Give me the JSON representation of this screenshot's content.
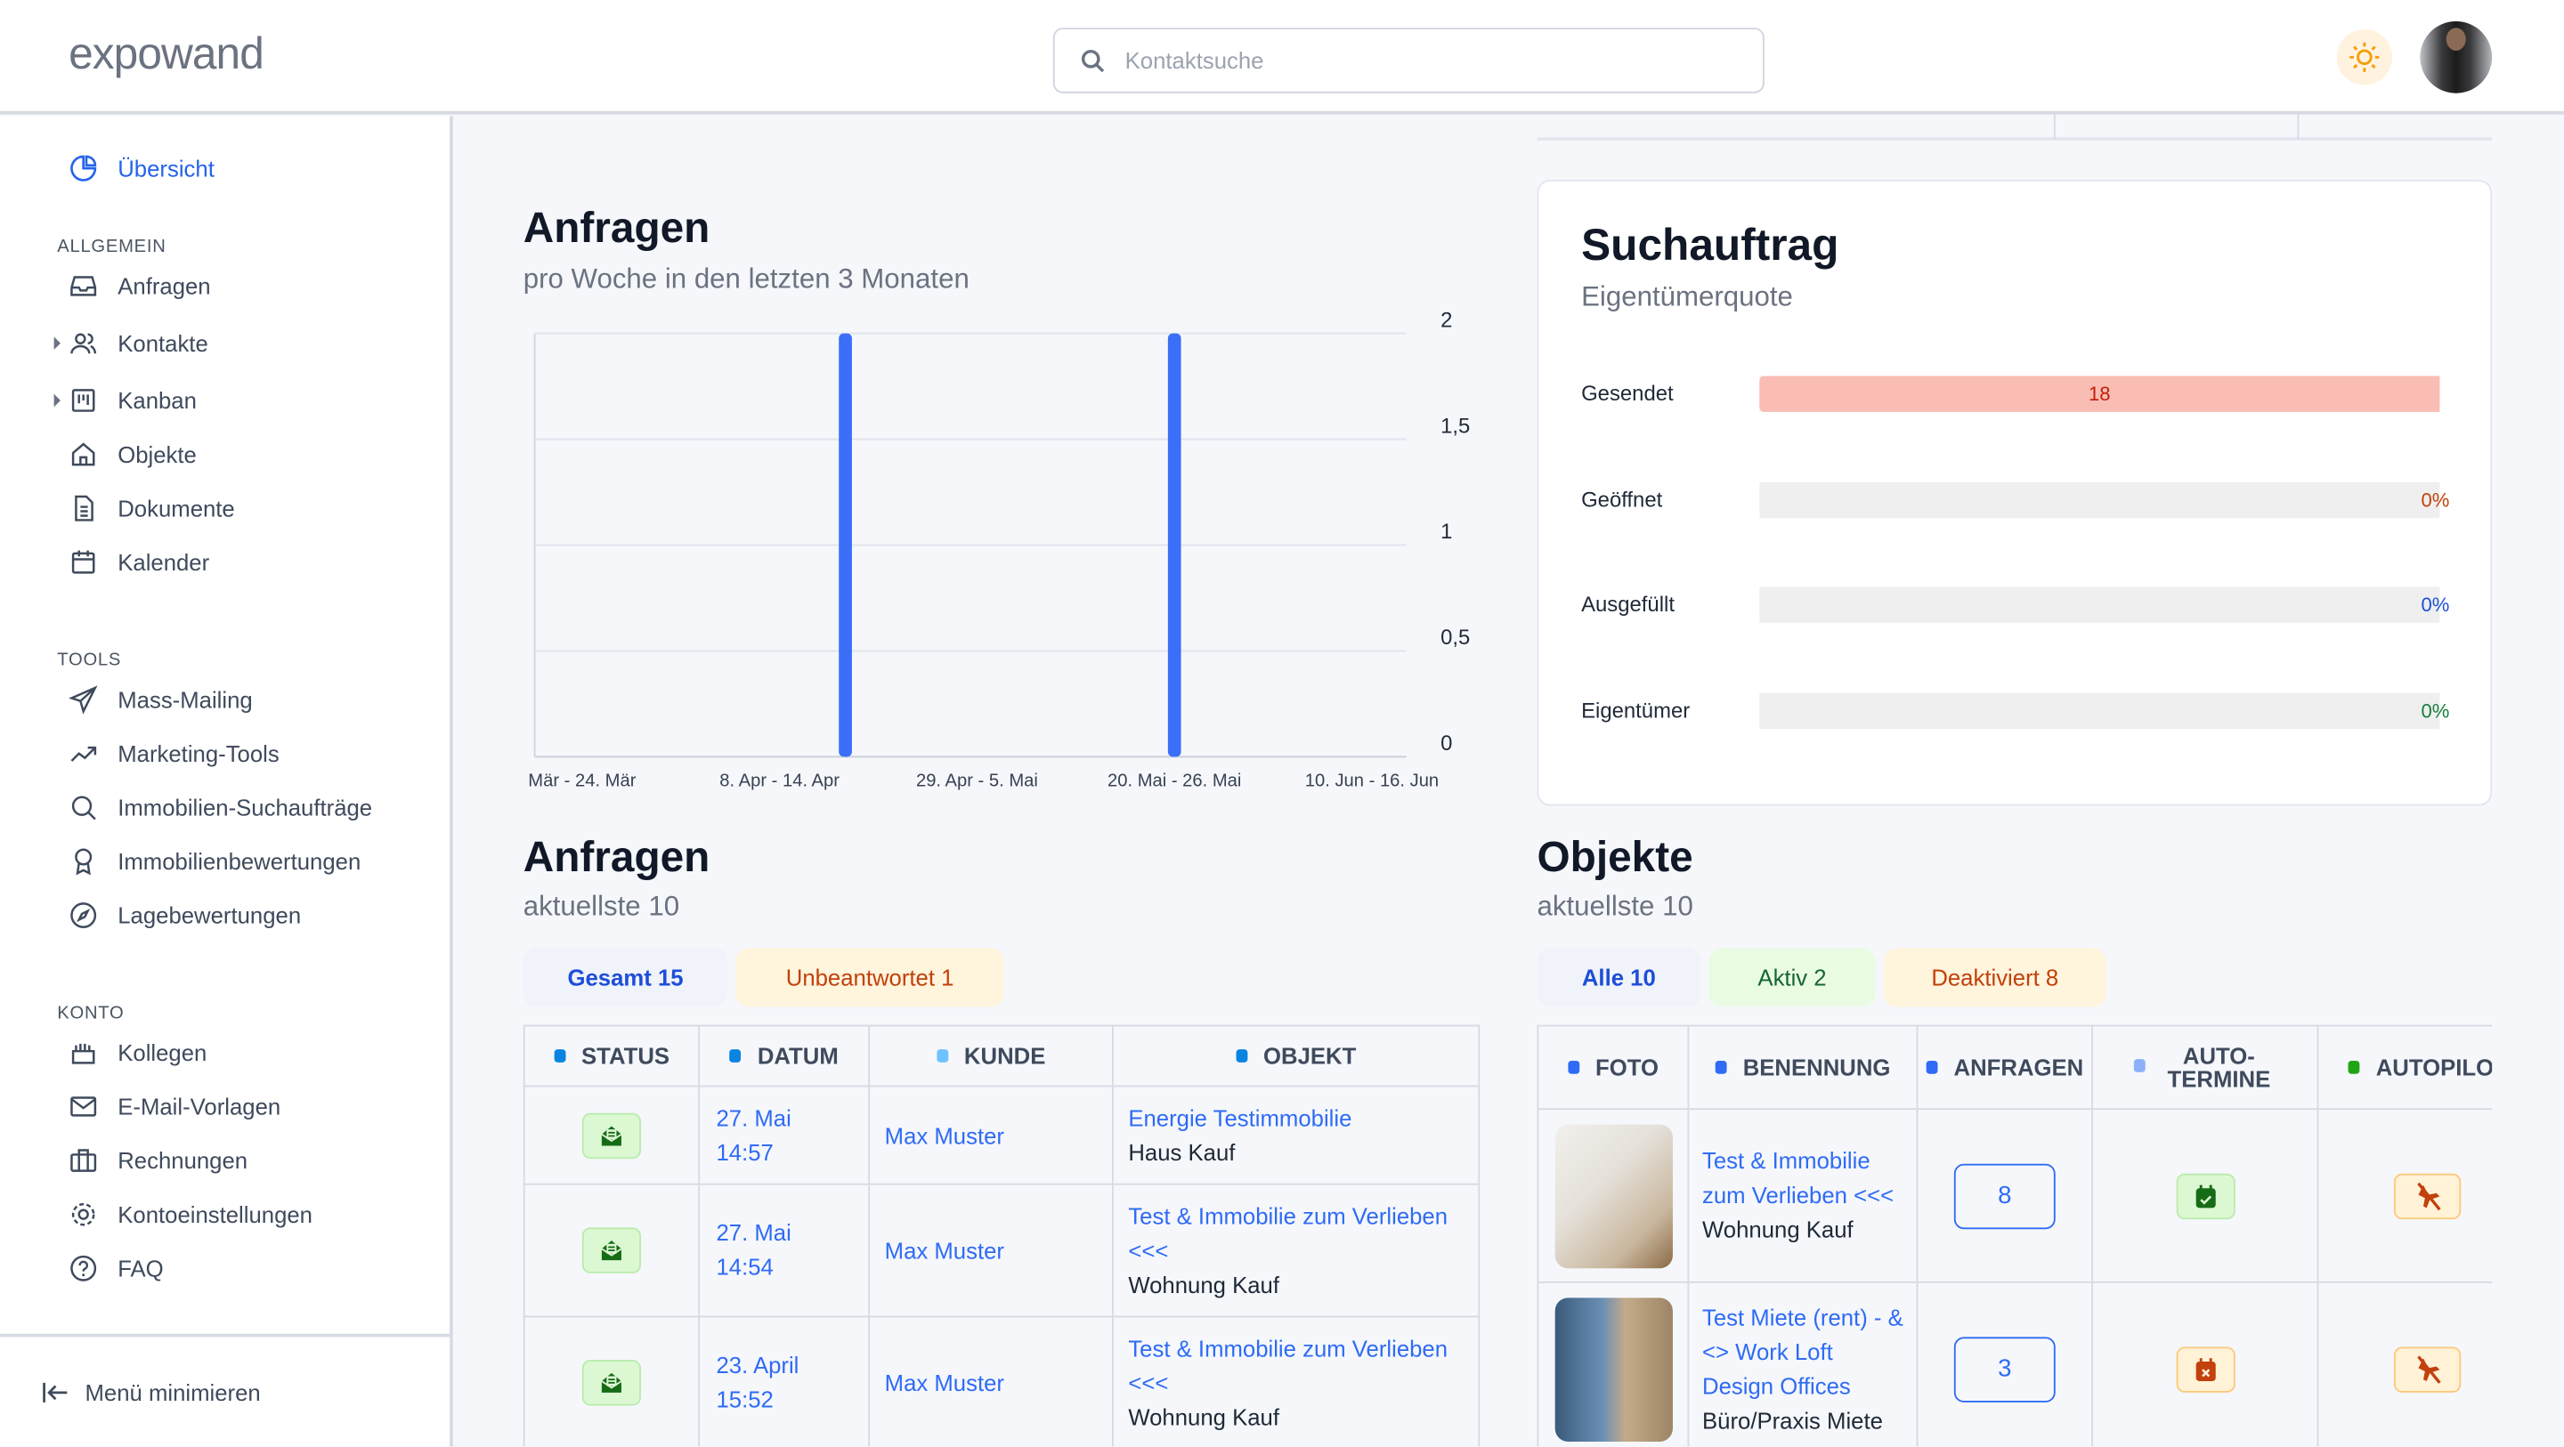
{
  "header": {
    "logo": "expowand",
    "search_placeholder": "Kontaktsuche",
    "theme_icon": "sun-icon"
  },
  "sidebar": {
    "overview": "Übersicht",
    "sections": [
      {
        "label": "ALLGEMEIN",
        "items": [
          "Anfragen",
          "Kontakte",
          "Kanban",
          "Objekte",
          "Dokumente",
          "Kalender"
        ]
      },
      {
        "label": "TOOLS",
        "items": [
          "Mass-Mailing",
          "Marketing-Tools",
          "Immobilien-Suchaufträge",
          "Immobilienbewertungen",
          "Lagebewertungen"
        ]
      },
      {
        "label": "KONTO",
        "items": [
          "Kollegen",
          "E-Mail-Vorlagen",
          "Rechnungen",
          "Kontoeinstellungen",
          "FAQ"
        ]
      }
    ],
    "minimize": "Menü minimieren"
  },
  "anfragen_chart": {
    "title": "Anfragen",
    "subtitle": "pro Woche in den letzten 3 Monaten"
  },
  "chart_data": {
    "type": "bar",
    "x_tick_labels": [
      "Mär - 24. Mär",
      "8. Apr - 14. Apr",
      "29. Apr - 5. Mai",
      "20. Mai - 26. Mai",
      "10. Jun - 16. Jun"
    ],
    "weekly_values": [
      0,
      0,
      0,
      0,
      2,
      0,
      0,
      0,
      0,
      2,
      0,
      0,
      0
    ],
    "y_ticks": [
      "0",
      "0,5",
      "1",
      "1,5",
      "2"
    ],
    "ylim": [
      0,
      2
    ],
    "grid": true,
    "bar_color": "#3b6ff7"
  },
  "suchauftrag": {
    "title": "Suchauftrag",
    "subtitle": "Eigentümerquote",
    "rows": [
      {
        "label": "Gesendet",
        "value": "18",
        "fill": 1.0,
        "color": "#c41d0a"
      },
      {
        "label": "Geöffnet",
        "value": "0%",
        "fill": 0,
        "color": "#c2410c"
      },
      {
        "label": "Ausgefüllt",
        "value": "0%",
        "fill": 0,
        "color": "#1d4ed8"
      },
      {
        "label": "Eigentümer",
        "value": "0%",
        "fill": 0,
        "color": "#15803d"
      }
    ]
  },
  "anfragen_list": {
    "title": "Anfragen",
    "subtitle": "aktuellste 10",
    "tabs": [
      "Gesamt 15",
      "Unbeantwortet 1"
    ],
    "columns": [
      "STATUS",
      "DATUM",
      "KUNDE",
      "OBJEKT"
    ],
    "rows": [
      {
        "date": "27. Mai",
        "time": "14:57",
        "kunde": "Max Muster",
        "objekt": "Energie Testimmobilie",
        "typ": "Haus Kauf"
      },
      {
        "date": "27. Mai",
        "time": "14:54",
        "kunde": "Max Muster",
        "objekt": "Test & Immobilie zum Verlieben <<<",
        "typ": "Wohnung Kauf"
      },
      {
        "date": "23. April",
        "time": "15:52",
        "kunde": "Max Muster",
        "objekt": "Test & Immobilie zum Verlieben <<<",
        "typ": "Wohnung Kauf"
      }
    ]
  },
  "objekte": {
    "title": "Objekte",
    "subtitle": "aktuellste 10",
    "tabs": [
      "Alle 10",
      "Aktiv 2",
      "Deaktiviert 8"
    ],
    "columns": [
      "FOTO",
      "BENENNUNG",
      "ANFRAGEN",
      "AUTO-TERMINE",
      "AUTOPILOT"
    ],
    "rows": [
      {
        "name": "Test & Immobilie zum Verlieben <<<",
        "typ": "Wohnung Kauf",
        "anfragen": "8",
        "autotermine": "on",
        "autopilot": "off"
      },
      {
        "name": "Test Miete (rent) - & <> Work Loft Design Offices",
        "typ": "Büro/Praxis Miete",
        "anfragen": "3",
        "autotermine": "off",
        "autopilot": "off"
      }
    ]
  }
}
